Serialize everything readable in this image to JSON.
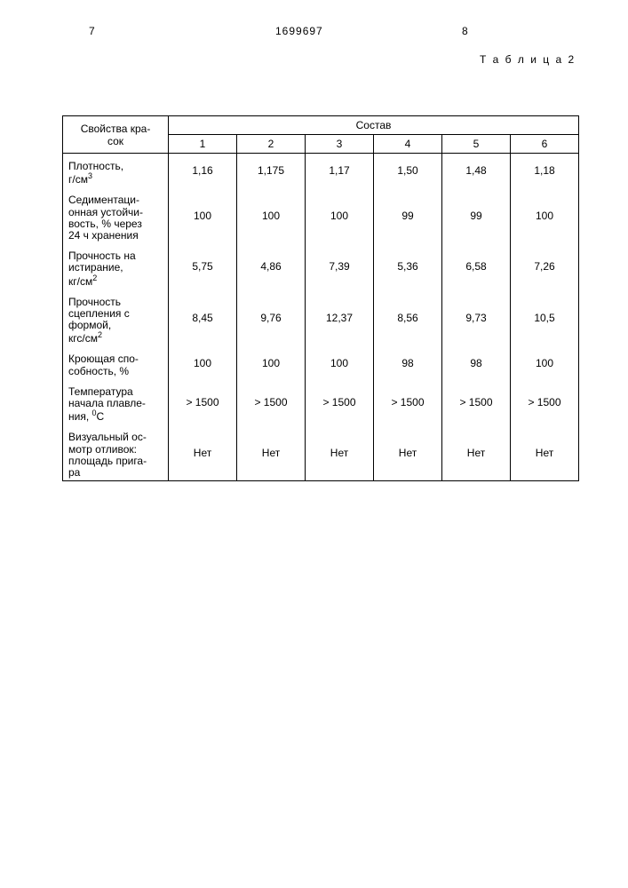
{
  "header": {
    "page_left": "7",
    "doc_number": "1699697",
    "page_right": "8",
    "table_label": "Т а б л и ц а 2"
  },
  "table": {
    "col_header_main": "Свойства кра-\nсок",
    "group_header": "Состав",
    "columns": [
      "1",
      "2",
      "3",
      "4",
      "5",
      "6"
    ],
    "rows": [
      {
        "label_html": "Плотность,<br>г/см<span class=\"sup\">3</span>",
        "values": [
          "1,16",
          "1,175",
          "1,17",
          "1,50",
          "1,48",
          "1,18"
        ]
      },
      {
        "label_html": "Седиментаци-<br>онная устойчи-<br>вость, % через<br>24 ч хранения",
        "values": [
          "100",
          "100",
          "100",
          "99",
          "99",
          "100"
        ]
      },
      {
        "label_html": "Прочность на<br>истирание,<br>кг/см<span class=\"sup\">2</span>",
        "values": [
          "5,75",
          "4,86",
          "7,39",
          "5,36",
          "6,58",
          "7,26"
        ]
      },
      {
        "label_html": "Прочность<br>сцепления с<br>формой,<br>кгс/см<span class=\"sup\">2</span>",
        "values": [
          "8,45",
          "9,76",
          "12,37",
          "8,56",
          "9,73",
          "10,5"
        ]
      },
      {
        "label_html": "Кроющая спо-<br>собность, %",
        "values": [
          "100",
          "100",
          "100",
          "98",
          "98",
          "100"
        ]
      },
      {
        "label_html": "Температура<br>начала плавле-<br>ния, <span class=\"sup\">0</span>С",
        "values": [
          "> 1500",
          "> 1500",
          "> 1500",
          "> 1500",
          "> 1500",
          "> 1500"
        ]
      },
      {
        "label_html": "Визуальный ос-<br>мотр отливок:<br>площадь прига-<br>ра",
        "values": [
          "Нет",
          "Нет",
          "Нет",
          "Нет",
          "Нет",
          "Нет"
        ]
      }
    ]
  }
}
